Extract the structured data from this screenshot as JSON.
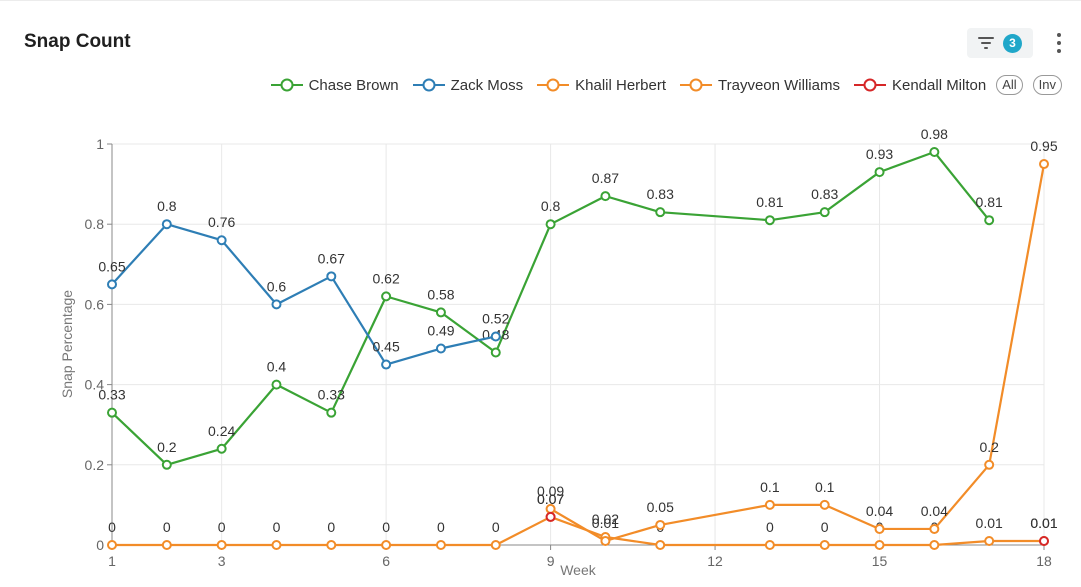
{
  "header": {
    "title": "Snap Count",
    "filter_count": "3"
  },
  "icons": {
    "filter": "filter-icon",
    "more": "more-vertical-icon"
  },
  "legend": {
    "all_label": "All",
    "inv_label": "Inv"
  },
  "chart_data": {
    "type": "line",
    "title": "Snap Count",
    "xlabel": "Week",
    "ylabel": "Snap Percentage",
    "xlim": [
      1,
      18
    ],
    "ylim": [
      0,
      1
    ],
    "xticks": [
      1,
      3,
      6,
      9,
      12,
      15,
      18
    ],
    "yticks": [
      0,
      0.2,
      0.4,
      0.6,
      0.8,
      1
    ],
    "yticklabels": [
      "0",
      "0.2",
      "0.4",
      "0.6",
      "0.8",
      "1"
    ],
    "grid": true,
    "legend_position": "top-right",
    "series": [
      {
        "name": "Chase Brown",
        "color": "#3aa335",
        "x": [
          1,
          2,
          3,
          4,
          5,
          6,
          7,
          8,
          9,
          10,
          11,
          13,
          14,
          15,
          16,
          17
        ],
        "values": [
          0.33,
          0.2,
          0.24,
          0.4,
          0.33,
          0.62,
          0.58,
          0.48,
          0.8,
          0.87,
          0.83,
          0.81,
          0.83,
          0.93,
          0.98,
          0.81
        ]
      },
      {
        "name": "Zack Moss",
        "color": "#2e7eb5",
        "x": [
          1,
          2,
          3,
          4,
          5,
          6,
          7,
          8
        ],
        "values": [
          0.65,
          0.8,
          0.76,
          0.6,
          0.67,
          0.45,
          0.49,
          0.52
        ]
      },
      {
        "name": "Khalil Herbert",
        "color": "#f28c28",
        "x": [
          1,
          2,
          3,
          4,
          5,
          6,
          7,
          8,
          9,
          10,
          11,
          13,
          14,
          15,
          16,
          17,
          18
        ],
        "values": [
          0,
          0,
          0,
          0,
          0,
          0,
          0,
          0,
          0.07,
          0.02,
          0,
          0,
          0,
          0,
          0,
          0.01,
          0.01
        ]
      },
      {
        "name": "Trayveon Williams",
        "color": "#f28c28",
        "x": [
          9,
          10,
          11,
          13,
          14,
          15,
          16,
          17,
          18
        ],
        "values": [
          0.09,
          0.01,
          0.05,
          0.1,
          0.1,
          0.04,
          0.04,
          0.2,
          0.95
        ]
      },
      {
        "name": "Kendall Milton",
        "color": "#d62728",
        "x": [
          9,
          18
        ],
        "values": [
          0.07,
          0.01
        ]
      }
    ]
  }
}
